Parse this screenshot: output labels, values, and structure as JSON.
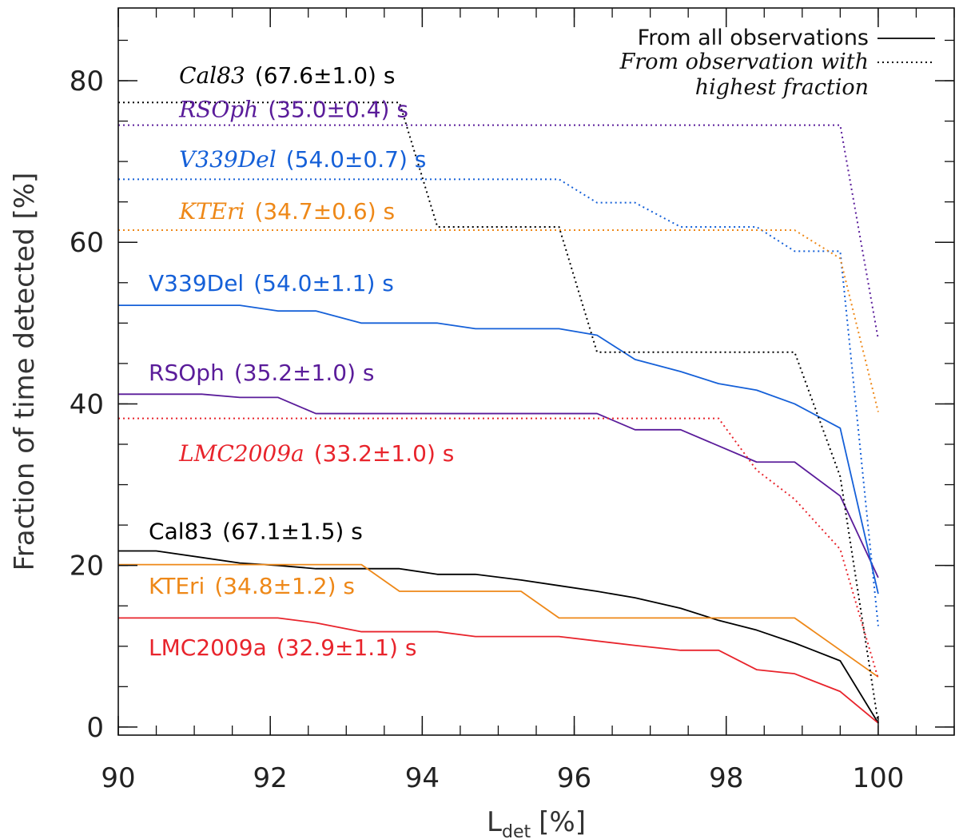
{
  "chart_data": {
    "type": "line",
    "title": "",
    "xlabel": "L",
    "xlabel_sub": "det",
    "xlabel_unit": "[%]",
    "ylabel": "Fraction of time detected [%]",
    "xlim": [
      90,
      101
    ],
    "ylim": [
      -1,
      89
    ],
    "xticks": [
      90,
      92,
      94,
      96,
      98,
      100
    ],
    "yticks": [
      0,
      20,
      40,
      60,
      80
    ],
    "legend": {
      "position": "top-right",
      "entries": [
        {
          "text": "From all observations",
          "style": "solid"
        },
        {
          "text": "From observation with",
          "style": "dotted"
        },
        {
          "text": "highest fraction",
          "style": "dotted"
        }
      ]
    },
    "series": [
      {
        "name": "Cal83",
        "group": "all",
        "style": "solid",
        "color": "#000000",
        "period": "(67.1±1.5) s",
        "x": [
          90,
          90.5,
          91.6,
          92.1,
          92.6,
          93.2,
          93.7,
          94.2,
          94.7,
          95.3,
          95.8,
          96.3,
          96.8,
          97.4,
          97.9,
          98.4,
          98.9,
          99.5,
          100
        ],
        "values": [
          21.8,
          21.8,
          20.3,
          20.0,
          19.6,
          19.6,
          19.6,
          18.9,
          18.9,
          18.2,
          17.5,
          16.8,
          16.0,
          14.7,
          13.2,
          12.0,
          10.4,
          8.2,
          0.5
        ]
      },
      {
        "name": "KTEri",
        "group": "all",
        "style": "solid",
        "color": "#EE8818",
        "period": "(34.8±1.2) s",
        "x": [
          90,
          93.2,
          93.7,
          95.3,
          95.8,
          98.9,
          100
        ],
        "values": [
          20.1,
          20.1,
          16.8,
          16.8,
          13.5,
          13.5,
          6.2
        ]
      },
      {
        "name": "LMC2009a",
        "group": "all",
        "style": "solid",
        "color": "#E8242C",
        "period": "(32.9±1.1) s",
        "x": [
          90,
          92.1,
          92.6,
          93.2,
          94.2,
          94.7,
          95.8,
          96.8,
          97.4,
          97.9,
          98.4,
          98.9,
          99.5,
          100
        ],
        "values": [
          13.5,
          13.5,
          12.9,
          11.8,
          11.8,
          11.2,
          11.2,
          10.1,
          9.5,
          9.5,
          7.1,
          6.6,
          4.4,
          0.5
        ]
      },
      {
        "name": "RSOph",
        "group": "all",
        "style": "solid",
        "color": "#5A1C9A",
        "period": "(35.2±1.0) s",
        "x": [
          90,
          91.1,
          91.6,
          92.1,
          92.6,
          96.3,
          96.8,
          97.4,
          98.4,
          98.9,
          99.5,
          100
        ],
        "values": [
          41.2,
          41.2,
          40.8,
          40.8,
          38.8,
          38.8,
          36.8,
          36.8,
          32.8,
          32.8,
          28.6,
          18.5
        ]
      },
      {
        "name": "V339Del",
        "group": "all",
        "style": "solid",
        "color": "#1560D8",
        "period": "(54.0±1.1) s",
        "x": [
          90,
          91.6,
          92.1,
          92.6,
          93.2,
          94.2,
          94.7,
          95.8,
          96.3,
          96.8,
          97.4,
          97.9,
          98.4,
          98.9,
          99.5,
          100
        ],
        "values": [
          52.2,
          52.2,
          51.5,
          51.5,
          50.0,
          50.0,
          49.3,
          49.3,
          48.5,
          45.5,
          44.0,
          42.5,
          41.7,
          40.0,
          37.0,
          16.5
        ]
      },
      {
        "name": "Cal83",
        "group": "best",
        "style": "dotted",
        "color": "#000000",
        "period": "(67.6±1.0) s",
        "x": [
          90,
          93.7,
          94.2,
          95.8,
          96.3,
          98.9,
          99.5,
          100
        ],
        "values": [
          77.3,
          77.3,
          61.9,
          61.9,
          46.4,
          46.4,
          31.0,
          0.5
        ]
      },
      {
        "name": "RSOph",
        "group": "best",
        "style": "dotted",
        "color": "#5A1C9A",
        "period": "(35.0±0.4) s",
        "x": [
          90,
          99.5,
          100
        ],
        "values": [
          74.5,
          74.5,
          48.0
        ]
      },
      {
        "name": "V339Del",
        "group": "best",
        "style": "dotted",
        "color": "#1560D8",
        "period": "(54.0±0.7) s",
        "x": [
          90,
          95.8,
          96.3,
          96.8,
          97.4,
          98.4,
          98.9,
          99.5,
          100
        ],
        "values": [
          67.8,
          67.8,
          64.9,
          64.9,
          61.9,
          61.9,
          58.9,
          58.9,
          12.5
        ]
      },
      {
        "name": "KTEri",
        "group": "best",
        "style": "dotted",
        "color": "#EE8818",
        "period": "(34.7±0.6) s",
        "x": [
          90,
          98.9,
          99.5,
          100
        ],
        "values": [
          61.5,
          61.5,
          58.0,
          39.0
        ]
      },
      {
        "name": "LMC2009a",
        "group": "best",
        "style": "dotted",
        "color": "#E8242C",
        "period": "(33.2±1.0) s",
        "x": [
          90,
          97.9,
          98.4,
          98.9,
          99.5,
          100
        ],
        "values": [
          38.2,
          38.2,
          31.8,
          28.2,
          22.0,
          6.0
        ]
      }
    ]
  }
}
